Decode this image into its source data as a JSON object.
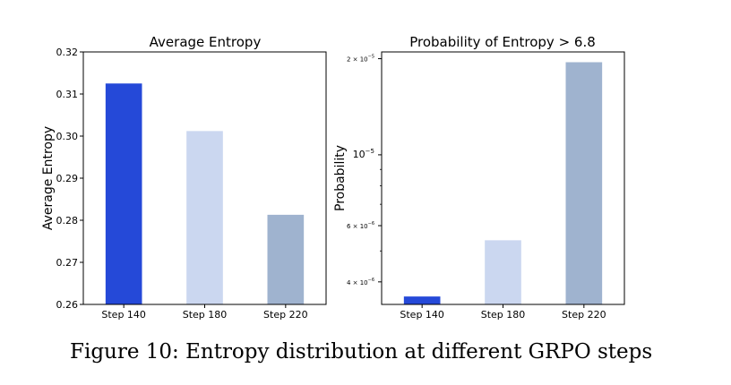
{
  "figure": {
    "caption": "Figure 10: Entropy distribution at different GRPO steps"
  },
  "chart_data": [
    {
      "type": "bar",
      "title": "Average Entropy",
      "xlabel": "",
      "ylabel": "Average Entropy",
      "categories": [
        "Step 140",
        "Step 180",
        "Step 220"
      ],
      "values": [
        0.3125,
        0.3012,
        0.2813
      ],
      "ylim": [
        0.26,
        0.32
      ],
      "yticks": [
        {
          "value": 0.26,
          "label": "0.26"
        },
        {
          "value": 0.27,
          "label": "0.27"
        },
        {
          "value": 0.28,
          "label": "0.28"
        },
        {
          "value": 0.29,
          "label": "0.29"
        },
        {
          "value": 0.3,
          "label": "0.30"
        },
        {
          "value": 0.31,
          "label": "0.31"
        },
        {
          "value": 0.32,
          "label": "0.32"
        }
      ],
      "colors": [
        "#2549d8",
        "#cbd7f0",
        "#9fb3cf"
      ],
      "grid": false
    },
    {
      "type": "bar",
      "title": "Probability of Entropy > 6.8",
      "xlabel": "",
      "ylabel": "Probability",
      "categories": [
        "Step 140",
        "Step 180",
        "Step 220"
      ],
      "values": [
        3.6e-06,
        5.4e-06,
        1.95e-05
      ],
      "yscale": "log",
      "ylim": [
        3.4e-06,
        2.1e-05
      ],
      "yticks": [
        {
          "value": 4e-06,
          "base": "4 × 10",
          "exp": "−6"
        },
        {
          "value": 6e-06,
          "base": "6 × 10",
          "exp": "−6"
        },
        {
          "value": 1e-05,
          "base": "10",
          "exp": "−5"
        },
        {
          "value": 2e-05,
          "base": "2 × 10",
          "exp": "−5"
        }
      ],
      "minor_ticks": [
        5e-06,
        7e-06,
        8e-06,
        9e-06
      ],
      "colors": [
        "#2549d8",
        "#cbd7f0",
        "#9fb3cf"
      ],
      "grid": false
    }
  ]
}
